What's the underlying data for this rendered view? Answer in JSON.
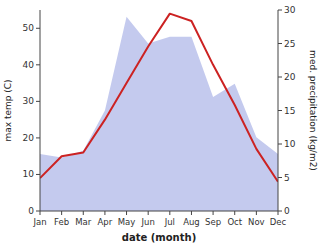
{
  "chart_data": {
    "type": "line",
    "categories": [
      "Jan",
      "Feb",
      "Mar",
      "Apr",
      "May",
      "Jun",
      "Jul",
      "Aug",
      "Sep",
      "Oct",
      "Nov",
      "Dec"
    ],
    "xlabel": "date (month)",
    "ylabel": "max temp (C)",
    "y2label": "med. precipitation (kg/m2)",
    "series": [
      {
        "type": "area",
        "axis": "y2",
        "color": "#b0b8e8",
        "values": [
          8.5,
          8,
          9,
          15,
          29,
          25,
          26,
          26,
          17,
          19,
          11,
          8.5
        ]
      },
      {
        "type": "line",
        "color": "#cc2222",
        "values": [
          9,
          15,
          16,
          25,
          35,
          45,
          54,
          52,
          40,
          29,
          17,
          8
        ]
      }
    ],
    "ylim": [
      0,
      55
    ],
    "yticks": [
      0,
      10,
      20,
      30,
      40,
      50
    ],
    "y2lim": [
      0,
      30
    ],
    "y2ticks": [
      0,
      5,
      10,
      15,
      20,
      25,
      30
    ],
    "grid": false
  }
}
